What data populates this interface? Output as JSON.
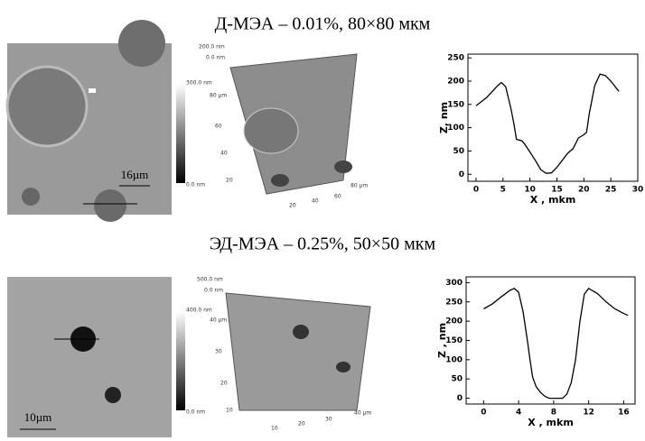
{
  "panels": [
    {
      "title": "Д-МЭА – 0.01%, 80×80 мкм",
      "scale_bar": "16µm",
      "colorbar_top": "300.0 nm",
      "colorbar_bottom": "0.0 nm",
      "z_top": "200.0 nm",
      "z_bottom": "0.0 nm",
      "axis_a": [
        "80 µm",
        "60",
        "40",
        "20"
      ],
      "axis_b": [
        "20",
        "40",
        "60",
        "80 µm"
      ]
    },
    {
      "title": "ЭД-МЭА – 0.25%, 50×50 мкм",
      "scale_bar": "10µm",
      "colorbar_top": "400.0 nm",
      "colorbar_bottom": "0.0 nm",
      "z_top": "500.0 nm",
      "z_bottom": "0.0 nm",
      "axis_a": [
        "40 µm",
        "30",
        "20",
        "10"
      ],
      "axis_b": [
        "10",
        "20",
        "30",
        "40 µm"
      ]
    }
  ],
  "chart_data": [
    {
      "type": "line",
      "xlabel": "X , mkm",
      "ylabel": "Z, nm",
      "color": "#000000",
      "xlim": [
        -1.5,
        30
      ],
      "xticks": [
        0,
        5,
        10,
        15,
        20,
        25,
        30
      ],
      "ylim": [
        -15,
        258
      ],
      "yticks": [
        0,
        50,
        100,
        150,
        200,
        250
      ],
      "x": [
        0,
        2,
        4,
        4.7,
        5.5,
        6.5,
        7,
        7.5,
        8.5,
        9,
        10,
        11,
        12,
        13,
        14,
        15,
        16,
        17,
        18,
        19,
        20,
        20.5,
        21,
        22,
        23,
        24,
        25,
        26.5
      ],
      "values": [
        147,
        165,
        190,
        197,
        188,
        140,
        110,
        75,
        72,
        65,
        48,
        30,
        10,
        2,
        3,
        15,
        30,
        45,
        55,
        78,
        85,
        90,
        130,
        190,
        215,
        212,
        200,
        178
      ]
    },
    {
      "type": "line",
      "xlabel": "X , mkm",
      "ylabel": "Z , nm",
      "color": "#000000",
      "xlim": [
        -2,
        17.3
      ],
      "xticks": [
        0,
        4,
        8,
        12,
        16
      ],
      "ylim": [
        -15,
        315
      ],
      "yticks": [
        0,
        50,
        100,
        150,
        200,
        250,
        300
      ],
      "x": [
        0,
        1,
        2,
        3,
        3.5,
        4,
        4.5,
        5,
        5.3,
        5.6,
        6,
        6.5,
        7,
        7.5,
        8,
        9,
        9.5,
        10,
        10.5,
        11,
        11.5,
        12,
        13,
        14,
        15,
        16,
        16.5
      ],
      "values": [
        232,
        245,
        263,
        280,
        285,
        275,
        225,
        150,
        100,
        55,
        30,
        15,
        5,
        0,
        0,
        0,
        10,
        40,
        100,
        200,
        270,
        285,
        272,
        250,
        232,
        220,
        215
      ]
    }
  ]
}
